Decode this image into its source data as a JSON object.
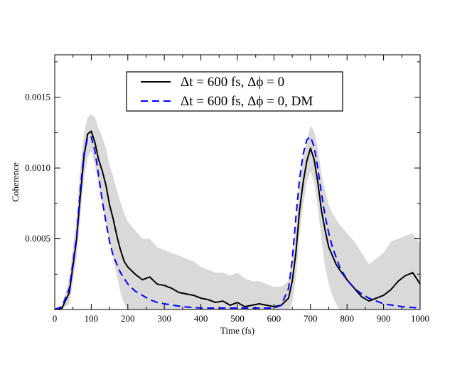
{
  "chart_data": {
    "type": "line",
    "title": "",
    "xlabel": "Time (fs)",
    "ylabel": "Coherence",
    "xlim": [
      0,
      1000
    ],
    "ylim": [
      0,
      0.0018
    ],
    "x_ticks": [
      0,
      100,
      200,
      300,
      400,
      500,
      600,
      700,
      800,
      900,
      1000
    ],
    "x_tick_labels": [
      "0",
      "100",
      "200",
      "300",
      "400",
      "500",
      "600",
      "700",
      "800",
      "900",
      "1000"
    ],
    "y_ticks": [
      0.0005,
      0.001,
      0.0015
    ],
    "y_tick_labels": [
      "0.0005",
      "0.0010",
      "0.0015"
    ],
    "grid": false,
    "legend_position": "top-center",
    "series": [
      {
        "name": "Δt = 600 fs, Δϕ = 0",
        "style": "solid",
        "color": "#000000",
        "x": [
          0,
          20,
          40,
          60,
          70,
          80,
          90,
          100,
          110,
          120,
          130,
          140,
          150,
          160,
          170,
          180,
          190,
          200,
          220,
          240,
          260,
          280,
          300,
          320,
          340,
          360,
          380,
          400,
          420,
          440,
          460,
          480,
          500,
          520,
          540,
          560,
          580,
          600,
          620,
          640,
          650,
          660,
          670,
          680,
          690,
          700,
          710,
          720,
          730,
          740,
          750,
          760,
          770,
          780,
          800,
          820,
          840,
          860,
          880,
          900,
          920,
          940,
          960,
          980,
          1000
        ],
        "y": [
          0,
          1e-05,
          0.00012,
          0.0005,
          0.0008,
          0.00108,
          0.00124,
          0.00126,
          0.00118,
          0.00106,
          0.00098,
          0.00088,
          0.00074,
          0.00064,
          0.00052,
          0.00042,
          0.00034,
          0.0003,
          0.00025,
          0.00021,
          0.00023,
          0.00018,
          0.00017,
          0.00015,
          0.00012,
          0.00011,
          0.0001,
          8e-05,
          7e-05,
          5e-05,
          6e-05,
          3e-05,
          5e-05,
          2e-05,
          3e-05,
          4e-05,
          3e-05,
          2e-05,
          3e-05,
          8e-05,
          0.0002,
          0.0004,
          0.0007,
          0.0009,
          0.00105,
          0.00114,
          0.00106,
          0.0009,
          0.0007,
          0.00056,
          0.00044,
          0.00038,
          0.00032,
          0.00028,
          0.00021,
          0.00015,
          9e-05,
          6e-05,
          8e-05,
          0.0001,
          0.00014,
          0.0002,
          0.00024,
          0.00026,
          0.00018
        ]
      },
      {
        "name": "Δt = 600 fs, Δϕ = 0, DM",
        "style": "dashed",
        "color": "#0000ff",
        "x": [
          0,
          20,
          40,
          60,
          70,
          80,
          90,
          100,
          110,
          120,
          130,
          140,
          150,
          160,
          180,
          200,
          220,
          240,
          260,
          280,
          300,
          350,
          400,
          450,
          500,
          550,
          600,
          620,
          640,
          650,
          660,
          670,
          680,
          690,
          700,
          710,
          720,
          730,
          740,
          750,
          760,
          780,
          800,
          820,
          840,
          860,
          880,
          900,
          950,
          1000
        ],
        "y": [
          0,
          2e-05,
          0.00015,
          0.00052,
          0.00085,
          0.0011,
          0.00121,
          0.00122,
          0.00112,
          0.00095,
          0.00077,
          0.00062,
          0.00048,
          0.00038,
          0.00026,
          0.00018,
          0.00013,
          0.0001,
          7e-05,
          5e-05,
          4e-05,
          2e-05,
          1e-05,
          1e-05,
          1e-05,
          1e-05,
          1e-05,
          3e-05,
          0.00015,
          0.00035,
          0.00065,
          0.00092,
          0.0011,
          0.0012,
          0.00122,
          0.00115,
          0.001,
          0.00082,
          0.00066,
          0.00054,
          0.00044,
          0.0003,
          0.00021,
          0.00015,
          0.00011,
          8e-05,
          6e-05,
          4e-05,
          2e-05,
          1e-05
        ]
      }
    ],
    "uncertainty_band": {
      "color": "#d9d9d9",
      "x": [
        0,
        20,
        40,
        60,
        70,
        80,
        90,
        100,
        110,
        120,
        130,
        140,
        150,
        160,
        170,
        180,
        190,
        200,
        220,
        240,
        260,
        280,
        300,
        320,
        340,
        360,
        380,
        400,
        420,
        440,
        460,
        480,
        500,
        520,
        540,
        560,
        580,
        600,
        620,
        640,
        650,
        660,
        670,
        680,
        690,
        700,
        710,
        720,
        730,
        740,
        750,
        760,
        770,
        780,
        800,
        820,
        840,
        860,
        880,
        900,
        920,
        940,
        960,
        980,
        1000
      ],
      "lower": [
        0,
        0,
        4e-05,
        0.00036,
        0.00066,
        0.00092,
        0.00108,
        0.00112,
        0.00102,
        0.00088,
        0.00074,
        0.00062,
        0.00048,
        0.00036,
        0.00024,
        0.00012,
        4e-05,
        0,
        0,
        0,
        0,
        0,
        0,
        0,
        0,
        0,
        0,
        0,
        0,
        0,
        0,
        0,
        0,
        0,
        0,
        0,
        0,
        0,
        0,
        0,
        4e-05,
        0.00022,
        0.00052,
        0.00074,
        0.0009,
        0.00098,
        0.0009,
        0.00072,
        0.0005,
        0.0003,
        0.00018,
        0.0001,
        4e-05,
        0,
        0,
        0,
        0,
        0,
        0,
        0,
        0,
        0,
        0,
        0,
        0
      ],
      "upper": [
        1e-05,
        3e-05,
        0.00022,
        0.00066,
        0.001,
        0.00124,
        0.00136,
        0.00138,
        0.00136,
        0.00128,
        0.00122,
        0.00114,
        0.00102,
        0.00094,
        0.00084,
        0.00076,
        0.00068,
        0.00062,
        0.00056,
        0.0005,
        0.0005,
        0.00044,
        0.00042,
        0.0004,
        0.00038,
        0.00036,
        0.00034,
        0.0003,
        0.00028,
        0.00026,
        0.00026,
        0.00024,
        0.00026,
        0.00022,
        0.0002,
        0.0002,
        0.00018,
        0.00016,
        0.00016,
        0.0002,
        0.00036,
        0.00058,
        0.00088,
        0.00108,
        0.0012,
        0.0013,
        0.00126,
        0.00114,
        0.00096,
        0.00084,
        0.00074,
        0.00068,
        0.00064,
        0.0006,
        0.00054,
        0.00048,
        0.0004,
        0.00032,
        0.00036,
        0.0004,
        0.00048,
        0.0005,
        0.00052,
        0.00054,
        0.00046
      ]
    }
  }
}
